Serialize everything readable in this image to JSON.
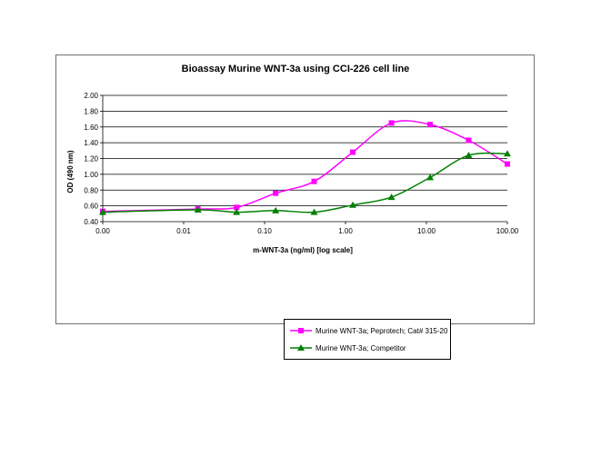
{
  "chart_data": {
    "type": "line",
    "title": "Bioassay Murine WNT-3a using CCI-226 cell line",
    "xlabel": "m-WNT-3a (ng/ml) [log scale]",
    "ylabel": "OD (490 nm)",
    "x_scale": "log",
    "xlim": [
      0.001,
      100
    ],
    "ylim": [
      0.4,
      2.0
    ],
    "x_tick_values": [
      0.001,
      0.01,
      0.1,
      1,
      10,
      100
    ],
    "x_tick_labels": [
      "0.00",
      "0.01",
      "0.10",
      "1.00",
      "10.00",
      "100.00"
    ],
    "y_tick_values": [
      0.4,
      0.6,
      0.8,
      1.0,
      1.2,
      1.4,
      1.6,
      1.8,
      2.0
    ],
    "y_tick_labels": [
      "0.40",
      "0.60",
      "0.80",
      "1.00",
      "1.20",
      "1.40",
      "1.60",
      "1.80",
      "2.00"
    ],
    "grid": "horizontal",
    "legend_position": "bottom",
    "series": [
      {
        "name": "Murine WNT-3a; Peprotech; Cat# 315-20",
        "color": "#ff00ff",
        "marker": "square",
        "x": [
          0.001,
          0.015,
          0.045,
          0.137,
          0.41,
          1.23,
          3.7,
          11.1,
          33.3,
          100
        ],
        "y": [
          0.53,
          0.56,
          0.58,
          0.76,
          0.91,
          1.28,
          1.65,
          1.63,
          1.43,
          1.13
        ]
      },
      {
        "name": "Murine WNT-3a; Competitor",
        "color": "#008000",
        "marker": "triangle",
        "x": [
          0.001,
          0.015,
          0.045,
          0.137,
          0.41,
          1.23,
          3.7,
          11.1,
          33.3,
          100
        ],
        "y": [
          0.52,
          0.55,
          0.52,
          0.54,
          0.52,
          0.61,
          0.71,
          0.96,
          1.24,
          1.26
        ]
      }
    ]
  }
}
